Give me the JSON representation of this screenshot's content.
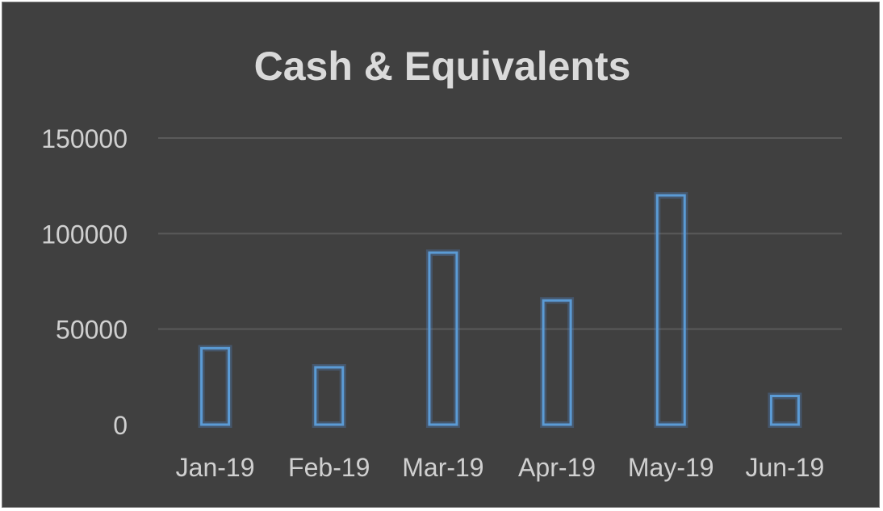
{
  "chart_data": {
    "type": "bar",
    "title": "Cash & Equivalents",
    "categories": [
      "Jan-19",
      "Feb-19",
      "Mar-19",
      "Apr-19",
      "May-19",
      "Jun-19"
    ],
    "series": [
      {
        "values": [
          40000,
          30000,
          90000,
          65000,
          120000,
          15000
        ]
      }
    ],
    "xlabel": "",
    "ylabel": "",
    "ylim": [
      0,
      150000
    ],
    "yticks": [
      0,
      50000,
      100000,
      150000
    ],
    "grid": true,
    "legend": "none",
    "colors": {
      "background": "#404040",
      "bar_outline": "#5b9bd5",
      "gridline": "#5a5a5a",
      "text": "#d0d0d0"
    }
  }
}
